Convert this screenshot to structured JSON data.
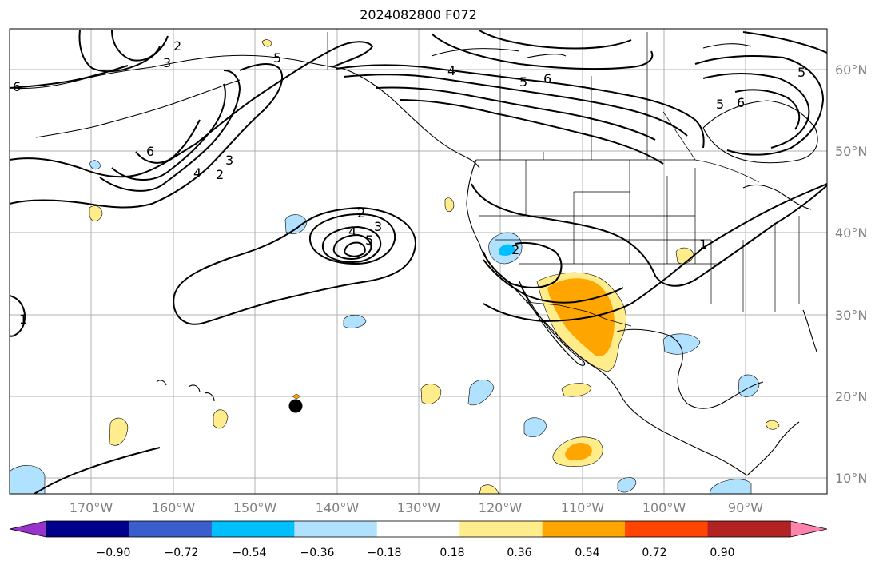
{
  "title": "2024082800 F072",
  "lat_labels": [
    "60°N",
    "50°N",
    "40°N",
    "30°N",
    "20°N",
    "10°N"
  ],
  "lon_labels": [
    "170°W",
    "160°W",
    "150°W",
    "140°W",
    "130°W",
    "120°W",
    "110°W",
    "100°W",
    "90°W"
  ],
  "contour_labels": [
    "2",
    "3",
    "4",
    "5",
    "6",
    "1"
  ],
  "colorbar": {
    "ticks": [
      "−0.90",
      "−0.72",
      "−0.54",
      "−0.36",
      "−0.18",
      "0.18",
      "0.36",
      "0.54",
      "0.72",
      "0.90"
    ],
    "colors": [
      "#9a32cd",
      "#00008b",
      "#3a5fcd",
      "#00bfff",
      "#b0e2ff",
      "#ffffff",
      "#ffec8b",
      "#ffa500",
      "#ff4500",
      "#b22222",
      "#ff82ab"
    ]
  }
}
